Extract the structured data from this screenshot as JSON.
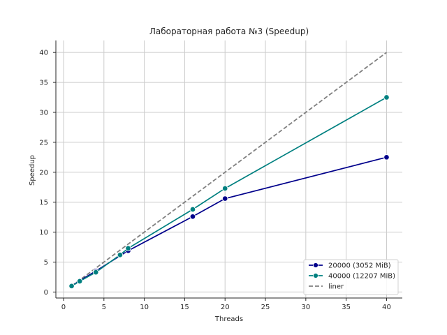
{
  "chart_data": {
    "type": "line",
    "title": "Лабораторная работа №3 (Speedup)",
    "xlabel": "Threads",
    "ylabel": "Speedup",
    "xlim": [
      -0.95,
      41.95
    ],
    "ylim": [
      -1.0,
      42.0
    ],
    "xticks": [
      0,
      5,
      10,
      15,
      20,
      25,
      30,
      35,
      40
    ],
    "yticks": [
      0,
      5,
      10,
      15,
      20,
      25,
      30,
      35,
      40
    ],
    "grid": true,
    "legend_position": "bottom-right",
    "series": [
      {
        "name": "20000 (3052 MiB)",
        "color": "#00008b",
        "style": "solid",
        "marker": "circle",
        "x": [
          1,
          2,
          4,
          8,
          16,
          20,
          40
        ],
        "y": [
          1.0,
          1.9,
          3.5,
          6.9,
          12.6,
          15.6,
          22.5
        ]
      },
      {
        "name": "40000 (12207 MiB)",
        "color": "#008080",
        "style": "solid",
        "marker": "circle",
        "x": [
          1,
          2,
          4,
          7,
          8,
          16,
          20,
          40
        ],
        "y": [
          1.0,
          1.8,
          3.3,
          6.2,
          7.3,
          13.8,
          17.3,
          32.5
        ]
      },
      {
        "name": "liner",
        "color": "#808080",
        "style": "dashed",
        "marker": "none",
        "x": [
          1,
          40
        ],
        "y": [
          1,
          40
        ]
      }
    ]
  }
}
